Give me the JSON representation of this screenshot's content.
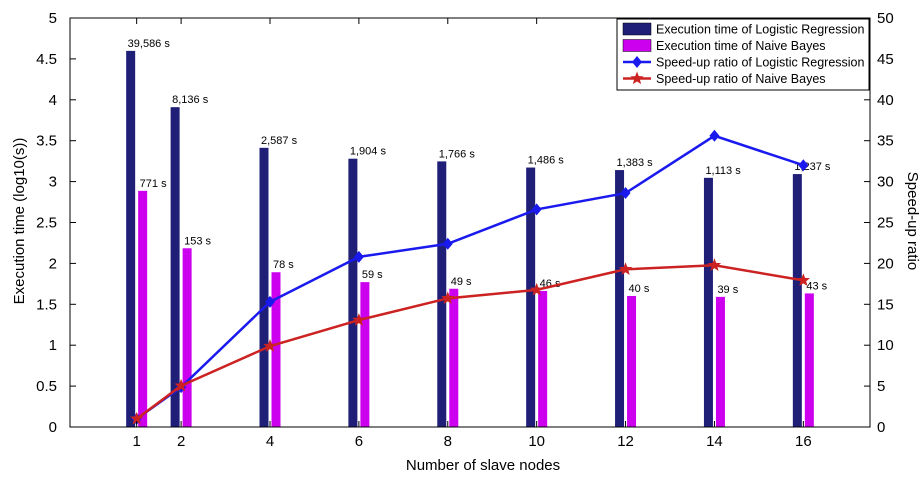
{
  "chart_data": {
    "type": "bar",
    "x": [
      1,
      2,
      4,
      6,
      8,
      10,
      12,
      14,
      16
    ],
    "xlabel": "Number of slave nodes",
    "ylabel": "Execution time (log10(s))",
    "y2label": "Speed-up ratio",
    "xlim": [
      -0.5,
      17.5
    ],
    "ylim": [
      0,
      5
    ],
    "y2lim": [
      0,
      50
    ],
    "x_ticks": [
      "1",
      "2",
      "4",
      "6",
      "8",
      "10",
      "12",
      "14",
      "16"
    ],
    "y_ticks": [
      "0",
      "0.5",
      "1",
      "1.5",
      "2",
      "2.5",
      "3",
      "3.5",
      "4",
      "4.5",
      "5"
    ],
    "y2_ticks": [
      "0",
      "5",
      "10",
      "15",
      "20",
      "25",
      "30",
      "35",
      "40",
      "45",
      "50"
    ],
    "grid": false,
    "legend_position": "top-right",
    "series": [
      {
        "name": "Execution time of Logistic Regression",
        "kind": "bar",
        "axis": "left",
        "color": "#1f1f78",
        "values": [
          4.598,
          3.91,
          3.413,
          3.28,
          3.247,
          3.172,
          3.141,
          3.046,
          3.092
        ],
        "labels": [
          "39,586 s",
          "8,136 s",
          "2,587 s",
          "1,904 s",
          "1,766 s",
          "1,486 s",
          "1,383 s",
          "1,113 s",
          "1,237 s"
        ]
      },
      {
        "name": "Execution time of Naive Bayes",
        "kind": "bar",
        "axis": "left",
        "color": "#cc00ee",
        "values": [
          2.887,
          2.185,
          1.892,
          1.771,
          1.69,
          1.663,
          1.602,
          1.591,
          1.633
        ],
        "labels": [
          "771 s",
          "153 s",
          "78 s",
          "59 s",
          "49 s",
          "46 s",
          "40 s",
          "39 s",
          "43 s"
        ]
      },
      {
        "name": "Speed-up ratio of Logistic Regression",
        "kind": "line",
        "axis": "right",
        "marker": "diamond",
        "color": "#1a1aee",
        "values": [
          1,
          4.87,
          15.3,
          20.8,
          22.4,
          26.6,
          28.6,
          35.6,
          32.0
        ]
      },
      {
        "name": "Speed-up ratio of Naive Bayes",
        "kind": "line",
        "axis": "right",
        "marker": "star",
        "color": "#cc2222",
        "values": [
          1,
          5.04,
          9.88,
          13.07,
          15.73,
          16.76,
          19.28,
          19.77,
          17.93
        ]
      }
    ]
  }
}
